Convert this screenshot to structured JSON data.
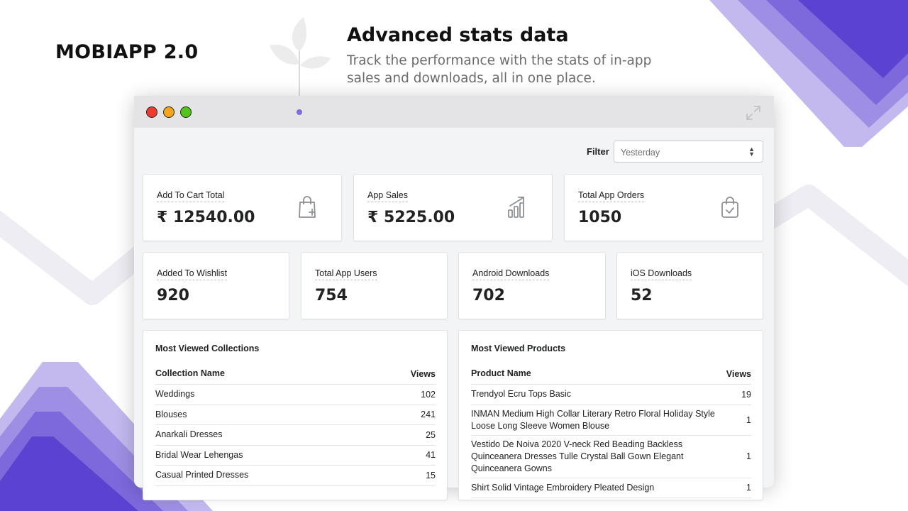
{
  "brand": "MOBIAPP 2.0",
  "hero": {
    "title": "Advanced stats data",
    "subtitle": "Track the performance with the stats of in-app sales and downloads, all in one place."
  },
  "filter": {
    "label": "Filter",
    "value": "Yesterday"
  },
  "stats_top": [
    {
      "label": "Add To Cart Total",
      "value": "₹ 12540.00",
      "icon": "shopping-bag-plus-icon"
    },
    {
      "label": "App Sales",
      "value": "₹ 5225.00",
      "icon": "growth-chart-icon"
    },
    {
      "label": "Total App Orders",
      "value": "1050",
      "icon": "bag-check-icon"
    }
  ],
  "stats_bottom": [
    {
      "label": "Added To Wishlist",
      "value": "920"
    },
    {
      "label": "Total App Users",
      "value": "754"
    },
    {
      "label": "Android Downloads",
      "value": "702"
    },
    {
      "label": "iOS Downloads",
      "value": "52"
    }
  ],
  "collections": {
    "title": "Most Viewed Collections",
    "headers": [
      "Collection Name",
      "Views"
    ],
    "rows": [
      {
        "name": "Weddings",
        "views": "102"
      },
      {
        "name": "Blouses",
        "views": "241"
      },
      {
        "name": "Anarkali Dresses",
        "views": "25"
      },
      {
        "name": "Bridal Wear Lehengas",
        "views": "41"
      },
      {
        "name": "Casual Printed Dresses",
        "views": "15"
      }
    ]
  },
  "products": {
    "title": "Most Viewed Products",
    "headers": [
      "Product Name",
      "Views"
    ],
    "rows": [
      {
        "name": "Trendyol Ecru Tops Basic",
        "views": "19"
      },
      {
        "name": "INMAN Medium High Collar Literary Retro Floral Holiday Style Loose Long Sleeve Women Blouse",
        "views": "1"
      },
      {
        "name": "Vestido De Noiva 2020 V-neck Red Beading Backless Quinceanera Dresses Tulle Crystal Ball Gown Elegant Quinceanera Gowns",
        "views": "1"
      },
      {
        "name": "Shirt Solid Vintage Embroidery Pleated Design",
        "views": "1"
      }
    ]
  },
  "colors": {
    "accent": "#6a5acd",
    "deco_purple": "#5b3fd0",
    "deco_light": "#ece9f6"
  }
}
